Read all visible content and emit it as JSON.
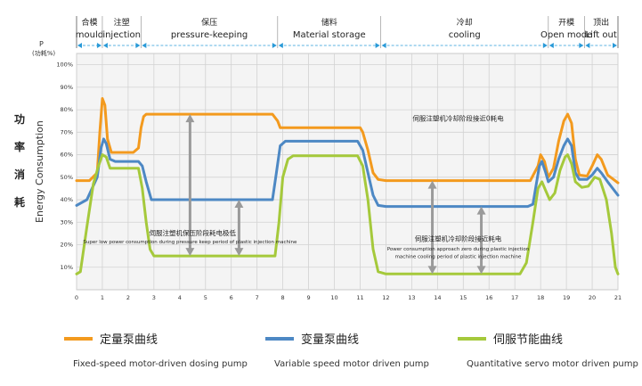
{
  "chart_data": {
    "type": "line",
    "y_axis_label": "P",
    "y_axis_unit": "(功耗%)",
    "side_label_zh": [
      "功",
      "率",
      "消",
      "耗"
    ],
    "side_label_en": "Energy Consumption",
    "x_ticks": [
      "0",
      "1",
      "2",
      "3",
      "4",
      "5",
      "6",
      "7",
      "8",
      "9",
      "10",
      "11",
      "12",
      "13",
      "14",
      "15",
      "16",
      "17",
      "18",
      "19",
      "20",
      "21"
    ],
    "y_ticks": [
      "10%",
      "20%",
      "30%",
      "40%",
      "50%",
      "60%",
      "70%",
      "80%",
      "90%",
      "100%"
    ],
    "xlim": [
      0,
      21
    ],
    "ylim": [
      0,
      105
    ],
    "grid": true,
    "phases": [
      {
        "zh": "合模",
        "en": "mould",
        "start": 0,
        "end": 1
      },
      {
        "zh": "注塑",
        "en": "injection",
        "start": 1,
        "end": 2.5
      },
      {
        "zh": "保压",
        "en": "pressure-keeping",
        "start": 2.5,
        "end": 7.8
      },
      {
        "zh": "储料",
        "en": "Material storage",
        "start": 7.8,
        "end": 11.8
      },
      {
        "zh": "冷却",
        "en": "cooling",
        "start": 11.8,
        "end": 18.3
      },
      {
        "zh": "开模",
        "en": "Open mode",
        "start": 18.3,
        "end": 19.7
      },
      {
        "zh": "顶出",
        "en": "Lift out",
        "start": 19.7,
        "end": 21
      }
    ],
    "series": [
      {
        "name": "定量泵曲线",
        "name_en": "Fixed-speed motor-driven dosing pump",
        "color": "#f39a1e",
        "points": [
          [
            0,
            48.5
          ],
          [
            0.5,
            48.5
          ],
          [
            0.8,
            52
          ],
          [
            0.9,
            70
          ],
          [
            1.0,
            85
          ],
          [
            1.1,
            82
          ],
          [
            1.2,
            67
          ],
          [
            1.35,
            61
          ],
          [
            2.2,
            61
          ],
          [
            2.4,
            63
          ],
          [
            2.5,
            72
          ],
          [
            2.6,
            77
          ],
          [
            2.7,
            78
          ],
          [
            7.6,
            78
          ],
          [
            7.8,
            75
          ],
          [
            7.9,
            72
          ],
          [
            11.0,
            72
          ],
          [
            11.1,
            70
          ],
          [
            11.3,
            62
          ],
          [
            11.5,
            52
          ],
          [
            11.7,
            49
          ],
          [
            12.0,
            48.5
          ],
          [
            17.6,
            48.5
          ],
          [
            17.9,
            55
          ],
          [
            18.0,
            60
          ],
          [
            18.15,
            57
          ],
          [
            18.3,
            50
          ],
          [
            18.5,
            54
          ],
          [
            18.7,
            66
          ],
          [
            18.9,
            75
          ],
          [
            19.05,
            78
          ],
          [
            19.2,
            74
          ],
          [
            19.35,
            58
          ],
          [
            19.5,
            51
          ],
          [
            19.8,
            50.5
          ],
          [
            20.0,
            55
          ],
          [
            20.2,
            60
          ],
          [
            20.35,
            58
          ],
          [
            20.6,
            51
          ],
          [
            21.0,
            47.5
          ]
        ]
      },
      {
        "name": "变量泵曲线",
        "name_en": "Variable speed motor driven pump",
        "color": "#4d88c4",
        "points": [
          [
            0,
            37.5
          ],
          [
            0.4,
            40
          ],
          [
            0.8,
            50
          ],
          [
            0.95,
            63
          ],
          [
            1.05,
            67
          ],
          [
            1.15,
            65
          ],
          [
            1.3,
            58
          ],
          [
            1.5,
            57
          ],
          [
            2.4,
            57
          ],
          [
            2.55,
            55
          ],
          [
            2.7,
            48
          ],
          [
            2.9,
            40
          ],
          [
            3.1,
            40
          ],
          [
            7.6,
            40
          ],
          [
            7.75,
            52
          ],
          [
            7.9,
            64
          ],
          [
            8.1,
            66
          ],
          [
            10.9,
            66
          ],
          [
            11.1,
            62
          ],
          [
            11.3,
            52
          ],
          [
            11.5,
            42
          ],
          [
            11.7,
            37.5
          ],
          [
            12.0,
            37
          ],
          [
            17.5,
            37
          ],
          [
            17.7,
            38
          ],
          [
            17.95,
            55
          ],
          [
            18.05,
            57
          ],
          [
            18.2,
            52
          ],
          [
            18.3,
            48
          ],
          [
            18.5,
            50
          ],
          [
            18.7,
            58
          ],
          [
            18.9,
            64
          ],
          [
            19.05,
            67
          ],
          [
            19.2,
            64
          ],
          [
            19.35,
            52
          ],
          [
            19.5,
            49
          ],
          [
            19.8,
            49
          ],
          [
            20.0,
            51
          ],
          [
            20.2,
            54
          ],
          [
            20.35,
            52
          ],
          [
            20.6,
            48
          ],
          [
            21.0,
            42
          ]
        ]
      },
      {
        "name": "伺服节能曲线",
        "name_en": "Quantitative servo motor driven pump",
        "color": "#a5c93b",
        "points": [
          [
            0,
            7
          ],
          [
            0.15,
            8
          ],
          [
            0.4,
            28
          ],
          [
            0.65,
            47
          ],
          [
            0.85,
            55
          ],
          [
            1.0,
            60
          ],
          [
            1.15,
            59
          ],
          [
            1.3,
            54
          ],
          [
            2.4,
            54
          ],
          [
            2.55,
            45
          ],
          [
            2.7,
            30
          ],
          [
            2.85,
            18
          ],
          [
            3.0,
            15
          ],
          [
            7.7,
            15
          ],
          [
            7.85,
            30
          ],
          [
            8.0,
            50
          ],
          [
            8.2,
            58
          ],
          [
            8.4,
            59.5
          ],
          [
            10.9,
            59.5
          ],
          [
            11.1,
            55
          ],
          [
            11.3,
            40
          ],
          [
            11.5,
            18
          ],
          [
            11.7,
            8
          ],
          [
            12.0,
            7
          ],
          [
            17.2,
            7
          ],
          [
            17.45,
            12
          ],
          [
            17.7,
            30
          ],
          [
            17.9,
            45
          ],
          [
            18.05,
            48
          ],
          [
            18.2,
            44
          ],
          [
            18.35,
            40
          ],
          [
            18.55,
            43
          ],
          [
            18.75,
            53
          ],
          [
            18.95,
            59
          ],
          [
            19.05,
            60
          ],
          [
            19.2,
            56
          ],
          [
            19.35,
            48
          ],
          [
            19.6,
            45.5
          ],
          [
            19.85,
            46
          ],
          [
            20.1,
            50
          ],
          [
            20.3,
            49
          ],
          [
            20.55,
            40
          ],
          [
            20.75,
            25
          ],
          [
            20.9,
            10
          ],
          [
            21.0,
            7
          ]
        ]
      }
    ],
    "annotations": [
      {
        "zh": "伺服注塑机保压阶段耗电极低",
        "en": "Super low power consumption during pressure keep period of plastic injection machine",
        "x": 3.0,
        "y": 18.2
      },
      {
        "zh": "伺服注塑机冷却阶段接近耗电",
        "en_lines": [
          "Power consumption approach zero during plastic injection",
          "machine cooling period of plastic injection machine"
        ],
        "x": 12.2,
        "y": 16.5
      },
      {
        "zh": "伺服注塑机冷却阶段接近0耗电",
        "x": 12.0,
        "y": 41
      }
    ],
    "arrows": [
      {
        "x": 4.4,
        "y1": 78,
        "y2": 15
      },
      {
        "x": 6.3,
        "y1": 40,
        "y2": 15
      },
      {
        "x": 13.8,
        "y1": 48.5,
        "y2": 7
      },
      {
        "x": 15.7,
        "y1": 37,
        "y2": 7
      }
    ]
  }
}
